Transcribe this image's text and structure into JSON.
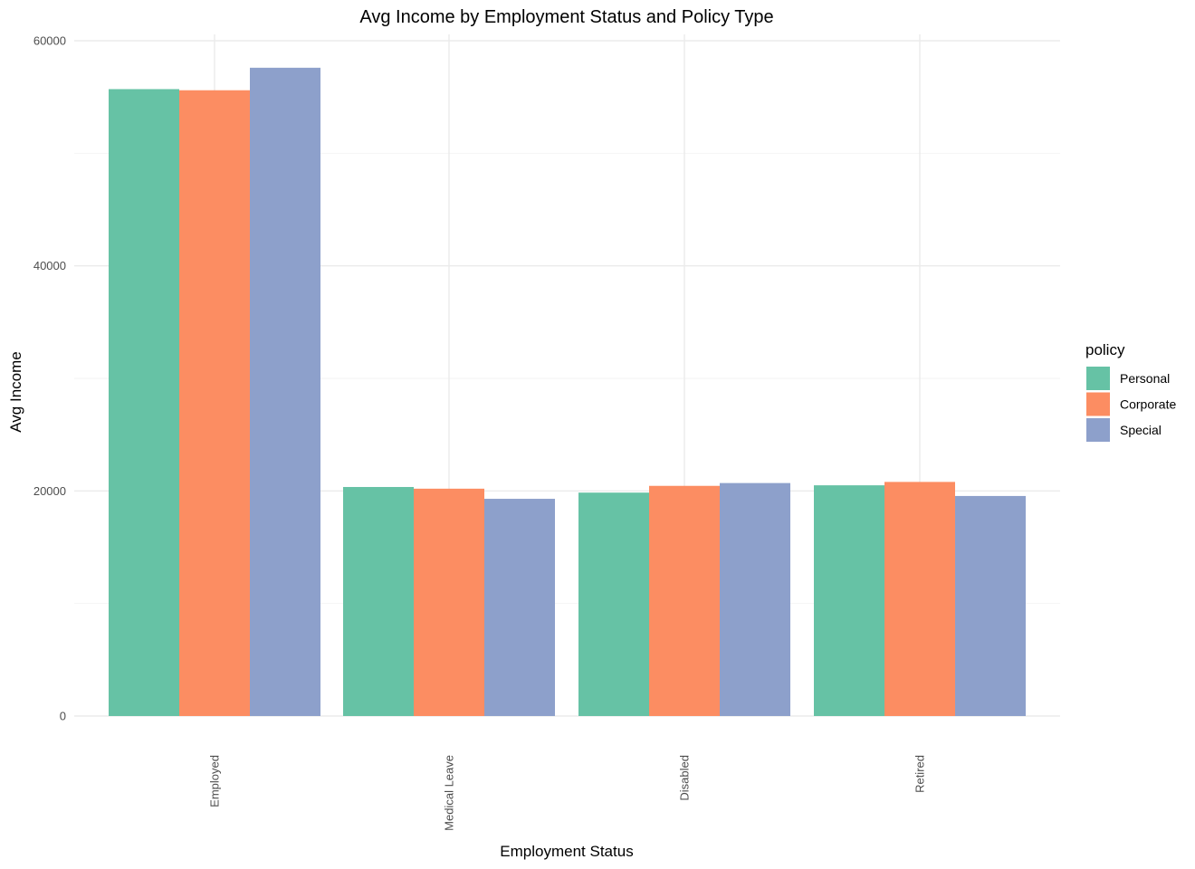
{
  "chart_data": {
    "type": "bar",
    "title": "Avg Income by Employment Status and Policy Type",
    "xlabel": "Employment Status",
    "ylabel": "Avg Income",
    "categories": [
      "Employed",
      "Medical Leave",
      "Disabled",
      "Retired"
    ],
    "series": [
      {
        "name": "Personal",
        "color": "#66c2a5",
        "values": [
          55700,
          20350,
          19850,
          20500
        ]
      },
      {
        "name": "Corporate",
        "color": "#fc8d62",
        "values": [
          55600,
          20200,
          20450,
          20800
        ]
      },
      {
        "name": "Special",
        "color": "#8da0cb",
        "values": [
          57600,
          19300,
          20700,
          19550
        ]
      }
    ],
    "ylim": [
      0,
      60000
    ],
    "yticks": [
      "0",
      "20000",
      "40000",
      "60000"
    ],
    "legend_title": "policy",
    "legend_position": "right",
    "grid": true,
    "x_tick_rotation": "vertical"
  }
}
